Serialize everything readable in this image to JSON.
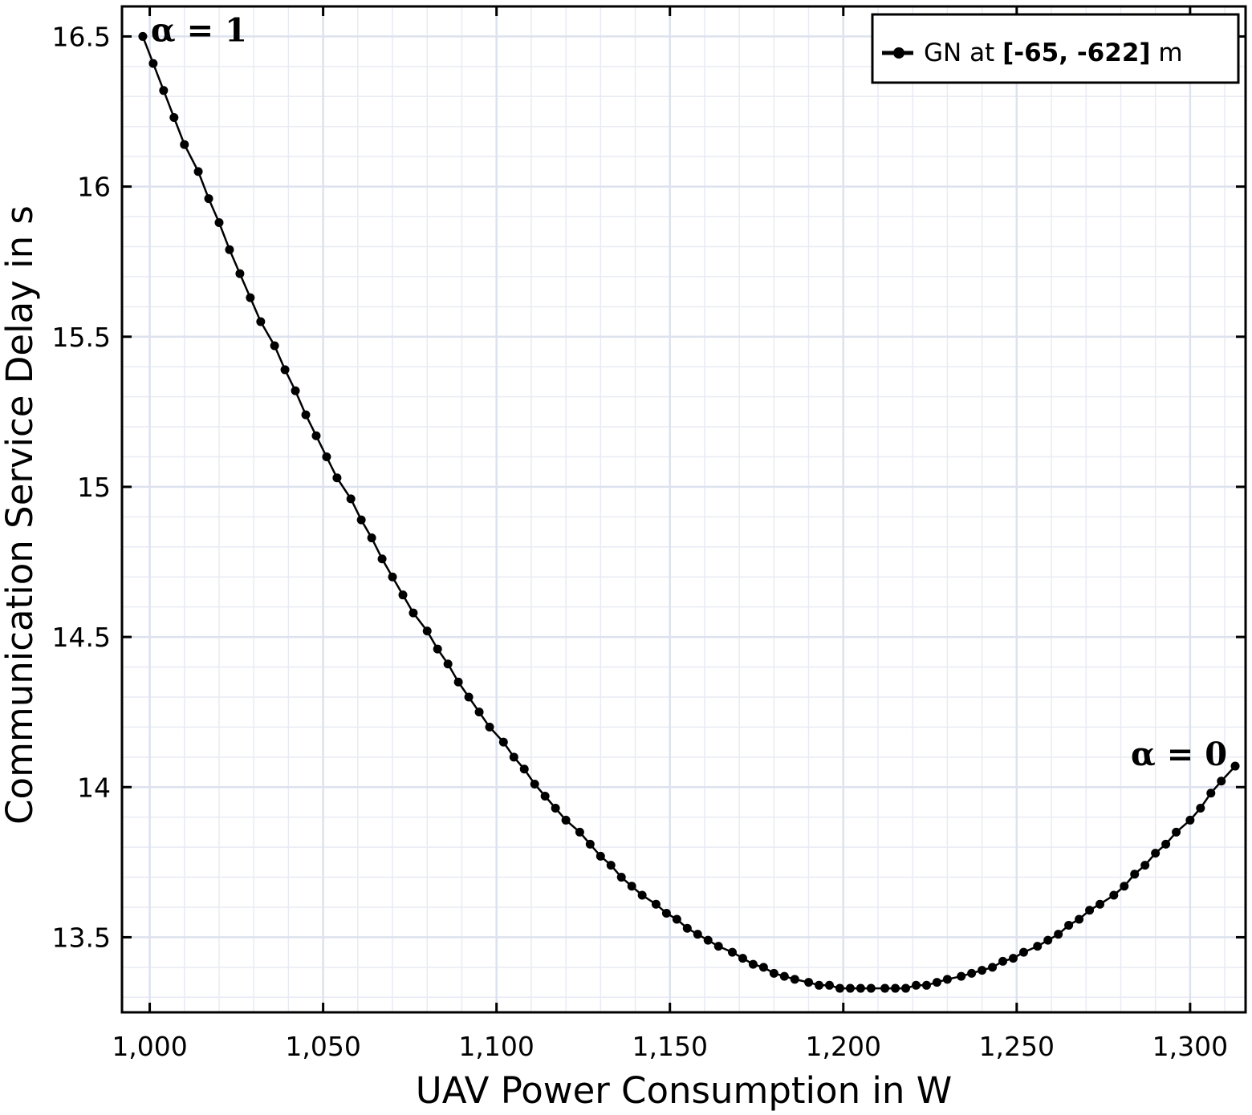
{
  "chart_data": {
    "type": "line",
    "xlabel": "UAV Power Consumption in W",
    "ylabel": "Communication Service Delay in s",
    "xlim": [
      992,
      1316
    ],
    "ylim": [
      13.25,
      16.6
    ],
    "x_ticks": [
      1000,
      1050,
      1100,
      1150,
      1200,
      1250,
      1300
    ],
    "x_tick_labels": [
      "1,000",
      "1,050",
      "1,100",
      "1,150",
      "1,200",
      "1,250",
      "1,300"
    ],
    "y_ticks": [
      13.5,
      14,
      14.5,
      15,
      15.5,
      16,
      16.5
    ],
    "y_tick_labels": [
      "13.5",
      "14",
      "14.5",
      "15",
      "15.5",
      "16",
      "16.5"
    ],
    "grid": true,
    "legend_position": "top-right",
    "legend": {
      "prefix": "GN at ",
      "coords": "[-65, -622]",
      "suffix": " m"
    },
    "annotations": [
      {
        "text": "α = 1",
        "x": 998,
        "y": 16.5
      },
      {
        "text": "α = 0",
        "x": 1313,
        "y": 14.07
      }
    ],
    "series": [
      {
        "name": "GN at [-65, -622] m",
        "color": "#000000",
        "x": [
          998,
          1001,
          1004,
          1007,
          1010,
          1014,
          1017,
          1020,
          1023,
          1026,
          1029,
          1032,
          1036,
          1039,
          1042,
          1045,
          1048,
          1051,
          1054,
          1058,
          1061,
          1064,
          1067,
          1070,
          1073,
          1076,
          1080,
          1083,
          1086,
          1089,
          1092,
          1095,
          1098,
          1102,
          1105,
          1108,
          1111,
          1114,
          1117,
          1120,
          1124,
          1127,
          1130,
          1133,
          1136,
          1139,
          1142,
          1146,
          1149,
          1152,
          1155,
          1158,
          1161,
          1164,
          1168,
          1171,
          1174,
          1177,
          1180,
          1183,
          1186,
          1190,
          1193,
          1196,
          1199,
          1202,
          1205,
          1208,
          1212,
          1215,
          1218,
          1221,
          1224,
          1227,
          1230,
          1234,
          1237,
          1240,
          1243,
          1246,
          1249,
          1252,
          1256,
          1259,
          1262,
          1265,
          1268,
          1271,
          1274,
          1278,
          1281,
          1284,
          1287,
          1290,
          1293,
          1296,
          1300,
          1303,
          1306,
          1309,
          1313
        ],
        "y": [
          16.5,
          16.41,
          16.32,
          16.23,
          16.14,
          16.05,
          15.96,
          15.88,
          15.79,
          15.71,
          15.63,
          15.55,
          15.47,
          15.39,
          15.32,
          15.24,
          15.17,
          15.1,
          15.03,
          14.96,
          14.89,
          14.83,
          14.76,
          14.7,
          14.64,
          14.58,
          14.52,
          14.46,
          14.41,
          14.35,
          14.3,
          14.25,
          14.2,
          14.15,
          14.1,
          14.06,
          14.01,
          13.97,
          13.93,
          13.89,
          13.85,
          13.81,
          13.77,
          13.74,
          13.7,
          13.67,
          13.64,
          13.61,
          13.58,
          13.56,
          13.53,
          13.51,
          13.49,
          13.47,
          13.45,
          13.43,
          13.41,
          13.4,
          13.38,
          13.37,
          13.36,
          13.35,
          13.34,
          13.34,
          13.33,
          13.33,
          13.33,
          13.33,
          13.33,
          13.33,
          13.33,
          13.34,
          13.34,
          13.35,
          13.36,
          13.37,
          13.38,
          13.39,
          13.4,
          13.42,
          13.43,
          13.45,
          13.47,
          13.49,
          13.51,
          13.54,
          13.56,
          13.59,
          13.61,
          13.64,
          13.67,
          13.71,
          13.74,
          13.78,
          13.81,
          13.85,
          13.89,
          13.93,
          13.98,
          14.02,
          14.07
        ]
      }
    ]
  }
}
